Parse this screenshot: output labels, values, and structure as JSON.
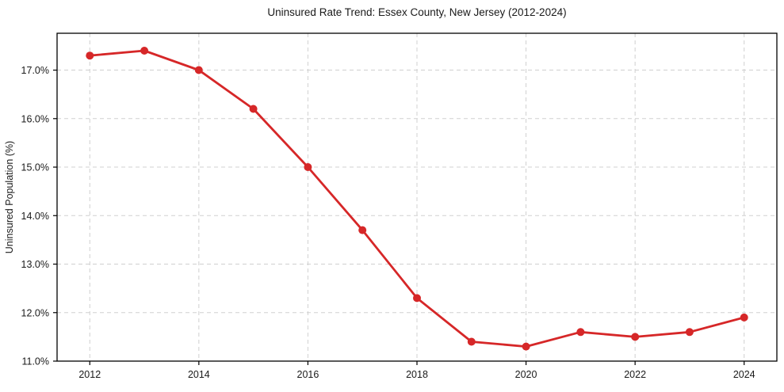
{
  "chart_data": {
    "type": "line",
    "title": "Uninsured Rate Trend: Essex County, New Jersey (2012-2024)",
    "ylabel": "Uninsured Population (%)",
    "x": [
      2012,
      2013,
      2014,
      2015,
      2016,
      2017,
      2018,
      2019,
      2020,
      2021,
      2022,
      2023,
      2024
    ],
    "values": [
      17.3,
      17.4,
      17.0,
      16.2,
      15.0,
      13.7,
      12.3,
      11.4,
      11.3,
      11.6,
      11.5,
      11.6,
      11.9
    ],
    "xlim": [
      2011.4,
      2024.6
    ],
    "ylim": [
      11.0,
      17.76
    ],
    "xticks": {
      "values": [
        2012,
        2014,
        2016,
        2018,
        2020,
        2022,
        2024
      ],
      "labels": [
        "2012",
        "2014",
        "2016",
        "2018",
        "2020",
        "2022",
        "2024"
      ]
    },
    "yticks": {
      "values": [
        11,
        12,
        13,
        14,
        15,
        16,
        17
      ],
      "labels": [
        "11.0%",
        "12.0%",
        "13.0%",
        "14.0%",
        "15.0%",
        "16.0%",
        "17.0%"
      ]
    },
    "grid": true,
    "grid_style": "dashed",
    "legend_position": "none",
    "line_color": "#d62728",
    "marker": "circle",
    "grid_color": "#d0d0d0",
    "axis_color": "#000000",
    "background_color": "#ffffff"
  }
}
